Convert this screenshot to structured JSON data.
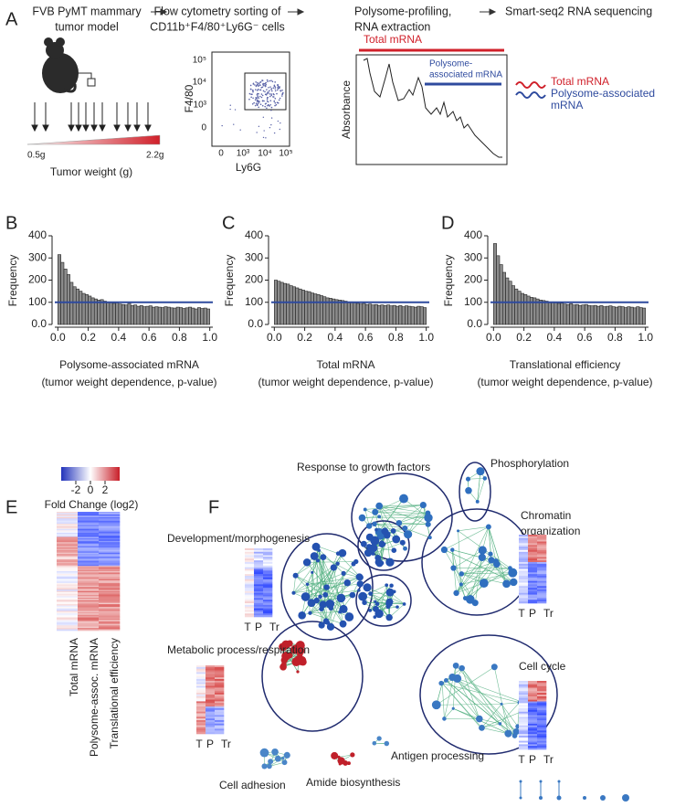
{
  "panel_a": {
    "letter": "A",
    "steps": [
      [
        "FVB PyMT mammary",
        "tumor model"
      ],
      [
        "Flow cytometry sorting of",
        "CD11b⁺F4/80⁺Ly6G⁻ cells"
      ],
      [
        "Polysome-profiling,",
        "RNA extraction"
      ],
      [
        "Smart-seq2 RNA sequencing"
      ]
    ],
    "tumor_min": "0.5g",
    "tumor_max": "2.2g",
    "tumor_axis": "Tumor weight (g)",
    "flow_ylabel": "F4/80",
    "flow_xlabel": "Ly6G",
    "flow_yticks": [
      "10⁵",
      "10⁴",
      "10³",
      "0"
    ],
    "flow_xticks": [
      "0",
      "10³",
      "10⁴",
      "10⁵"
    ],
    "total_mrna": "Total mRNA",
    "polysome_label": [
      "Polysome-",
      "associated mRNA"
    ],
    "absorbance": "Absorbance",
    "legend": [
      "Total mRNA",
      "Polysome-associated",
      "mRNA"
    ]
  },
  "chart_data": [
    {
      "type": "histogram",
      "panel": "B",
      "xlabel": [
        "Polysome-associated mRNA",
        "(tumor weight dependence,  p-value)"
      ],
      "ylabel": "Frequency",
      "bins": [
        0,
        0.02,
        0.04,
        0.06,
        0.08,
        0.1,
        0.12,
        0.14,
        0.16,
        0.18,
        0.2,
        0.22,
        0.24,
        0.26,
        0.28,
        0.3,
        0.32,
        0.34,
        0.36,
        0.38,
        0.4,
        0.42,
        0.44,
        0.46,
        0.48,
        0.5,
        0.52,
        0.54,
        0.56,
        0.58,
        0.6,
        0.62,
        0.64,
        0.66,
        0.68,
        0.7,
        0.72,
        0.74,
        0.76,
        0.78,
        0.8,
        0.82,
        0.84,
        0.86,
        0.88,
        0.9,
        0.92,
        0.94,
        0.96,
        0.98,
        1
      ],
      "values": [
        315,
        280,
        250,
        225,
        190,
        170,
        160,
        150,
        140,
        135,
        128,
        120,
        115,
        110,
        112,
        105,
        100,
        98,
        95,
        100,
        92,
        90,
        88,
        95,
        85,
        88,
        82,
        85,
        80,
        82,
        84,
        78,
        80,
        78,
        76,
        80,
        78,
        75,
        74,
        78,
        76,
        72,
        75,
        78,
        74,
        70,
        76,
        72,
        74,
        70
      ],
      "color": "#8c8c8c",
      "reference_line": 100,
      "reference_color": "#2e4a9e",
      "xlim": [
        -0.02,
        1.02
      ],
      "ylim": [
        0,
        400
      ],
      "xticks": [
        {
          "value": 0,
          "label": "0.0"
        },
        0.2,
        0.4,
        0.6,
        0.8,
        {
          "value": 1,
          "label": "1.0"
        }
      ],
      "yticks": [
        {
          "value": 0,
          "label": "0.0"
        },
        100,
        200,
        300,
        400
      ]
    },
    {
      "type": "histogram",
      "panel": "C",
      "xlabel": [
        "Total mRNA",
        "(tumor weight dependence,  p-value)"
      ],
      "ylabel": "Frequency",
      "bins": [
        0,
        0.02,
        0.04,
        0.06,
        0.08,
        0.1,
        0.12,
        0.14,
        0.16,
        0.18,
        0.2,
        0.22,
        0.24,
        0.26,
        0.28,
        0.3,
        0.32,
        0.34,
        0.36,
        0.38,
        0.4,
        0.42,
        0.44,
        0.46,
        0.48,
        0.5,
        0.52,
        0.54,
        0.56,
        0.58,
        0.6,
        0.62,
        0.64,
        0.66,
        0.68,
        0.7,
        0.72,
        0.74,
        0.76,
        0.78,
        0.8,
        0.82,
        0.84,
        0.86,
        0.88,
        0.9,
        0.92,
        0.94,
        0.96,
        0.98,
        1
      ],
      "values": [
        200,
        195,
        190,
        185,
        182,
        175,
        170,
        165,
        160,
        155,
        150,
        148,
        142,
        138,
        135,
        130,
        125,
        120,
        118,
        115,
        112,
        110,
        108,
        105,
        100,
        102,
        98,
        95,
        92,
        95,
        90,
        92,
        88,
        90,
        86,
        88,
        85,
        88,
        84,
        86,
        82,
        85,
        80,
        84,
        82,
        80,
        78,
        82,
        80,
        76
      ],
      "color": "#8c8c8c",
      "reference_line": 100,
      "reference_color": "#2e4a9e",
      "xlim": [
        -0.02,
        1.02
      ],
      "ylim": [
        0,
        400
      ],
      "xticks": [
        {
          "value": 0,
          "label": "0.0"
        },
        0.2,
        0.4,
        0.6,
        0.8,
        {
          "value": 1,
          "label": "1.0"
        }
      ],
      "yticks": [
        {
          "value": 0,
          "label": "0.0"
        },
        100,
        200,
        300,
        400
      ]
    },
    {
      "type": "histogram",
      "panel": "D",
      "xlabel": [
        "Translational efficiency",
        "(tumor weight dependence,  p-value)"
      ],
      "ylabel": "Frequency",
      "bins": [
        0,
        0.02,
        0.04,
        0.06,
        0.08,
        0.1,
        0.12,
        0.14,
        0.16,
        0.18,
        0.2,
        0.22,
        0.24,
        0.26,
        0.28,
        0.3,
        0.32,
        0.34,
        0.36,
        0.38,
        0.4,
        0.42,
        0.44,
        0.46,
        0.48,
        0.5,
        0.52,
        0.54,
        0.56,
        0.58,
        0.6,
        0.62,
        0.64,
        0.66,
        0.68,
        0.7,
        0.72,
        0.74,
        0.76,
        0.78,
        0.8,
        0.82,
        0.84,
        0.86,
        0.88,
        0.9,
        0.92,
        0.94,
        0.96,
        0.98,
        1
      ],
      "values": [
        365,
        310,
        270,
        235,
        210,
        195,
        175,
        160,
        150,
        140,
        135,
        128,
        122,
        120,
        115,
        110,
        108,
        105,
        100,
        102,
        98,
        95,
        96,
        92,
        90,
        94,
        88,
        90,
        86,
        88,
        90,
        85,
        84,
        86,
        82,
        85,
        80,
        82,
        84,
        80,
        78,
        82,
        80,
        76,
        80,
        78,
        75,
        80,
        76,
        74
      ],
      "color": "#8c8c8c",
      "reference_line": 100,
      "reference_color": "#2e4a9e",
      "xlim": [
        -0.02,
        1.02
      ],
      "ylim": [
        0,
        400
      ],
      "xticks": [
        {
          "value": 0,
          "label": "0.0"
        },
        0.2,
        0.4,
        0.6,
        0.8,
        {
          "value": 1,
          "label": "1.0"
        }
      ],
      "yticks": [
        {
          "value": 0,
          "label": "0.0"
        },
        100,
        200,
        300,
        400
      ]
    }
  ],
  "panel_e": {
    "letter": "E",
    "colorbar_ticks": [
      -2,
      0,
      2
    ],
    "colorbar_label": "Fold Change (log2)",
    "columns": [
      "Total mRNA",
      "Polysome-assoc. mRNA",
      "Translational efficiency"
    ]
  },
  "panel_f": {
    "letter": "F",
    "column_labels": [
      "T",
      "P",
      "Tr"
    ],
    "clusters": [
      "Response to growth factors",
      "Phosphorylation",
      "Chromatin",
      "organization",
      "Development/morphogenesis",
      "Metabolic process/respiration",
      "Cell cycle",
      "Antigen processing",
      "Cell adhesion",
      "Amide biosynthesis"
    ]
  }
}
